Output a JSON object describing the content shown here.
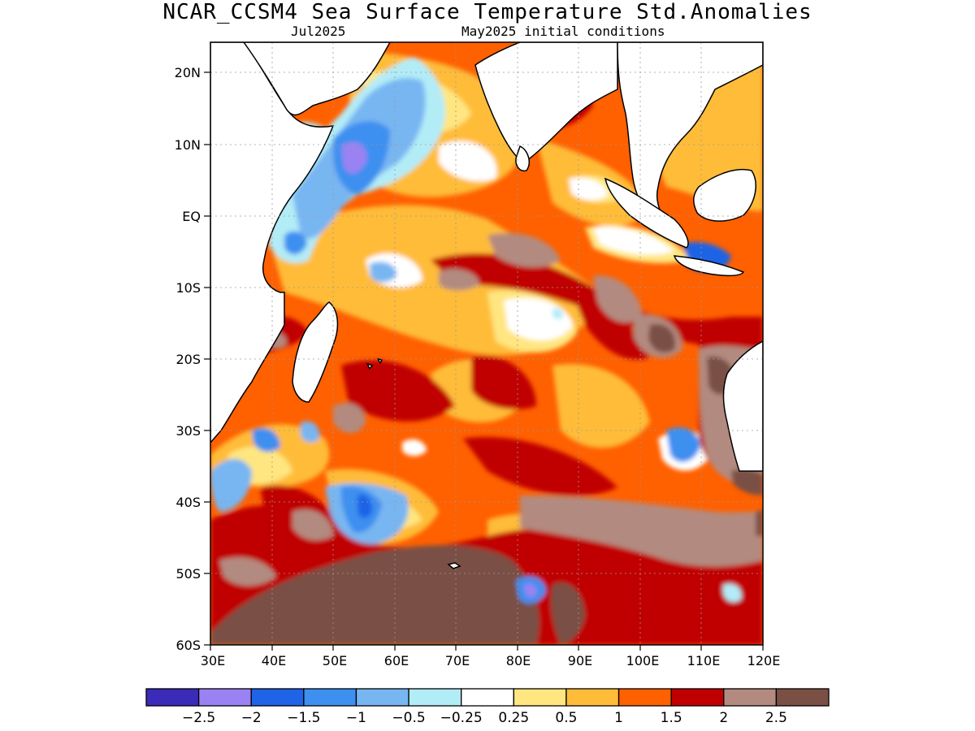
{
  "map": {
    "title": "NCAR_CCSM4 Sea Surface Temperature Std.Anomalies",
    "valid_month": "Jul2025",
    "init_label": "May2025 initial conditions",
    "lon_labels": [
      "30E",
      "40E",
      "50E",
      "60E",
      "70E",
      "80E",
      "90E",
      "100E",
      "110E",
      "120E"
    ],
    "lat_labels": [
      "20N",
      "10N",
      "EQ",
      "10S",
      "20S",
      "30S",
      "40S",
      "50S",
      "60S"
    ],
    "lon_range": [
      30,
      120
    ],
    "lat_range": [
      -60,
      24
    ],
    "grid": true
  },
  "colorbar": {
    "colors": [
      "#3a2bb8",
      "#9b82f2",
      "#1f63e6",
      "#3d8ff0",
      "#78b6f2",
      "#b2ecf7",
      "#ffffff",
      "#ffe680",
      "#ffbc38",
      "#ff6000",
      "#c00000",
      "#b38a7f",
      "#7a5045"
    ],
    "labels": [
      "−2.5",
      "−2",
      "−1.5",
      "−1",
      "−0.5",
      "−0.25",
      "0.25",
      "0.5",
      "1",
      "1.5",
      "2",
      "2.5"
    ]
  }
}
